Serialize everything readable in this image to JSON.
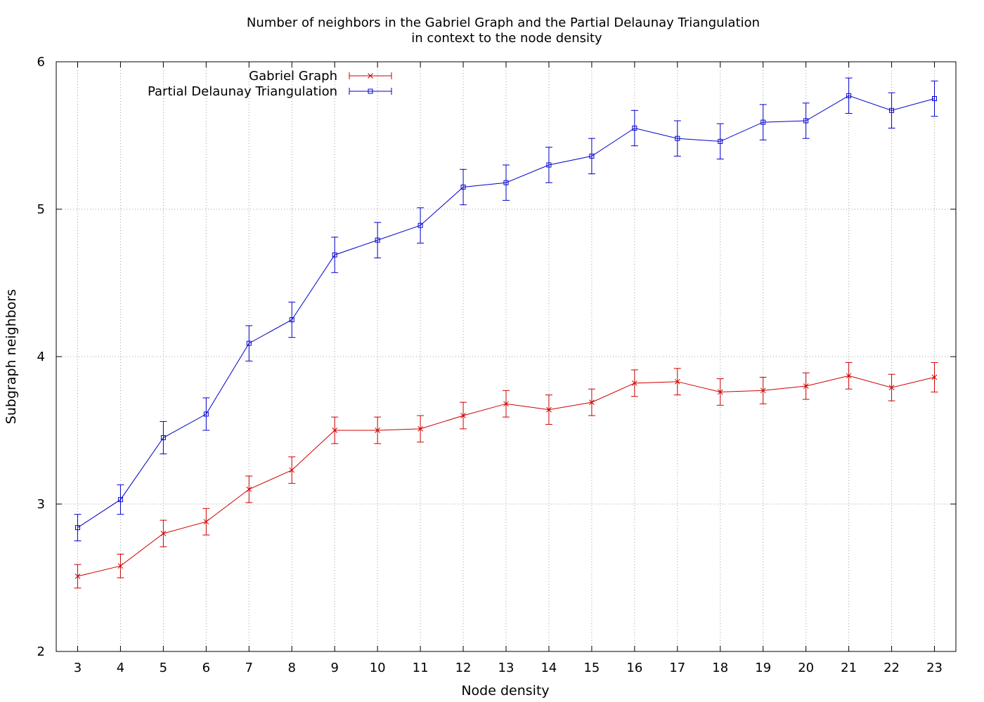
{
  "chart_data": {
    "type": "line",
    "title": [
      "Number of neighbors in the Gabriel Graph and the Partial Delaunay Triangulation",
      "in context to the node density"
    ],
    "xlabel": "Node density",
    "ylabel": "Subgraph neighbors",
    "x": [
      3,
      4,
      5,
      6,
      7,
      8,
      9,
      10,
      11,
      12,
      13,
      14,
      15,
      16,
      17,
      18,
      19,
      20,
      21,
      22,
      23
    ],
    "xlim": [
      2.5,
      23.5
    ],
    "ylim": [
      2,
      6
    ],
    "xticks": [
      3,
      4,
      5,
      6,
      7,
      8,
      9,
      10,
      11,
      12,
      13,
      14,
      15,
      16,
      17,
      18,
      19,
      20,
      21,
      22,
      23
    ],
    "yticks": [
      2,
      3,
      4,
      5,
      6
    ],
    "grid": true,
    "legend_position": "top-left",
    "series": [
      {
        "name": "Gabriel Graph",
        "color": "#cc0000",
        "marker": "x",
        "values": [
          2.51,
          2.58,
          2.8,
          2.88,
          3.1,
          3.23,
          3.5,
          3.5,
          3.51,
          3.6,
          3.68,
          3.64,
          3.69,
          3.82,
          3.83,
          3.76,
          3.77,
          3.8,
          3.87,
          3.79,
          3.86
        ],
        "errors": [
          0.08,
          0.08,
          0.09,
          0.09,
          0.09,
          0.09,
          0.09,
          0.09,
          0.09,
          0.09,
          0.09,
          0.1,
          0.09,
          0.09,
          0.09,
          0.09,
          0.09,
          0.09,
          0.09,
          0.09,
          0.1
        ]
      },
      {
        "name": "Partial Delaunay Triangulation",
        "color": "#0000cc",
        "marker": "square",
        "values": [
          2.84,
          3.03,
          3.45,
          3.61,
          4.09,
          4.25,
          4.69,
          4.79,
          4.89,
          5.15,
          5.18,
          5.3,
          5.36,
          5.55,
          5.48,
          5.46,
          5.59,
          5.6,
          5.77,
          5.67,
          5.75
        ],
        "errors": [
          0.09,
          0.1,
          0.11,
          0.11,
          0.12,
          0.12,
          0.12,
          0.12,
          0.12,
          0.12,
          0.12,
          0.12,
          0.12,
          0.12,
          0.12,
          0.12,
          0.12,
          0.12,
          0.12,
          0.12,
          0.12
        ]
      }
    ]
  }
}
